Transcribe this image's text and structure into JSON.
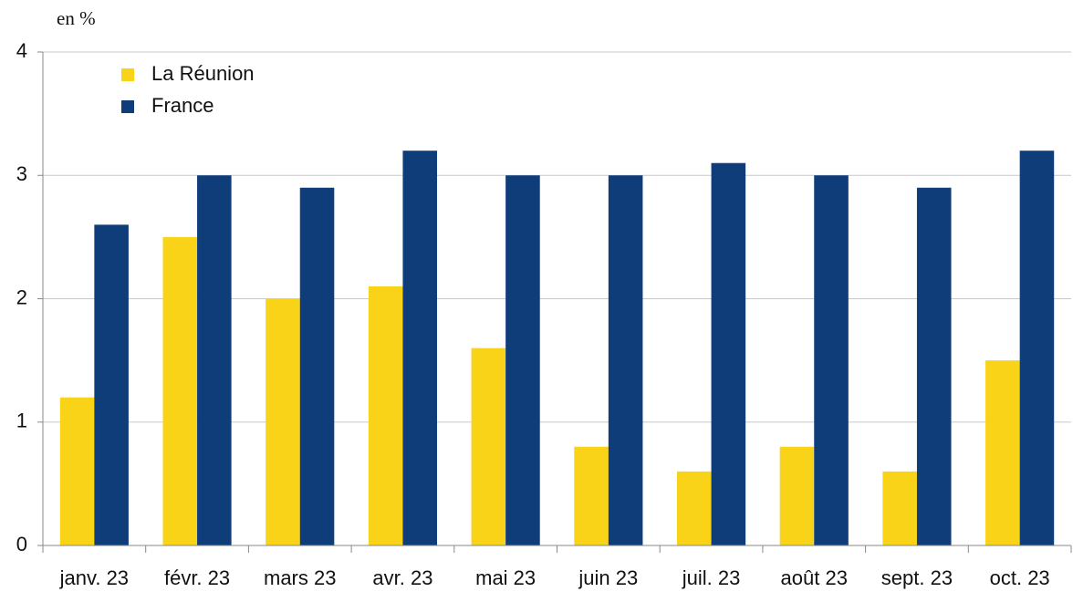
{
  "chart_data": {
    "type": "bar",
    "y_axis_label": "en %",
    "categories": [
      "janv. 23",
      "févr. 23",
      "mars 23",
      "avr. 23",
      "mai 23",
      "juin 23",
      "juil. 23",
      "août 23",
      "sept. 23",
      "oct. 23"
    ],
    "series": [
      {
        "name": "La Réunion",
        "color": "#f9d317",
        "values": [
          1.2,
          2.5,
          2.0,
          2.1,
          1.6,
          0.8,
          0.6,
          0.8,
          0.6,
          1.5
        ]
      },
      {
        "name": "France",
        "color": "#0e3d7a",
        "values": [
          2.6,
          3.0,
          2.9,
          3.2,
          3.0,
          3.0,
          3.1,
          3.0,
          2.9,
          3.2
        ]
      }
    ],
    "ylim": [
      0,
      4
    ],
    "yticks": [
      0,
      1,
      2,
      3,
      4
    ],
    "grid": true,
    "legend": "top-left"
  }
}
